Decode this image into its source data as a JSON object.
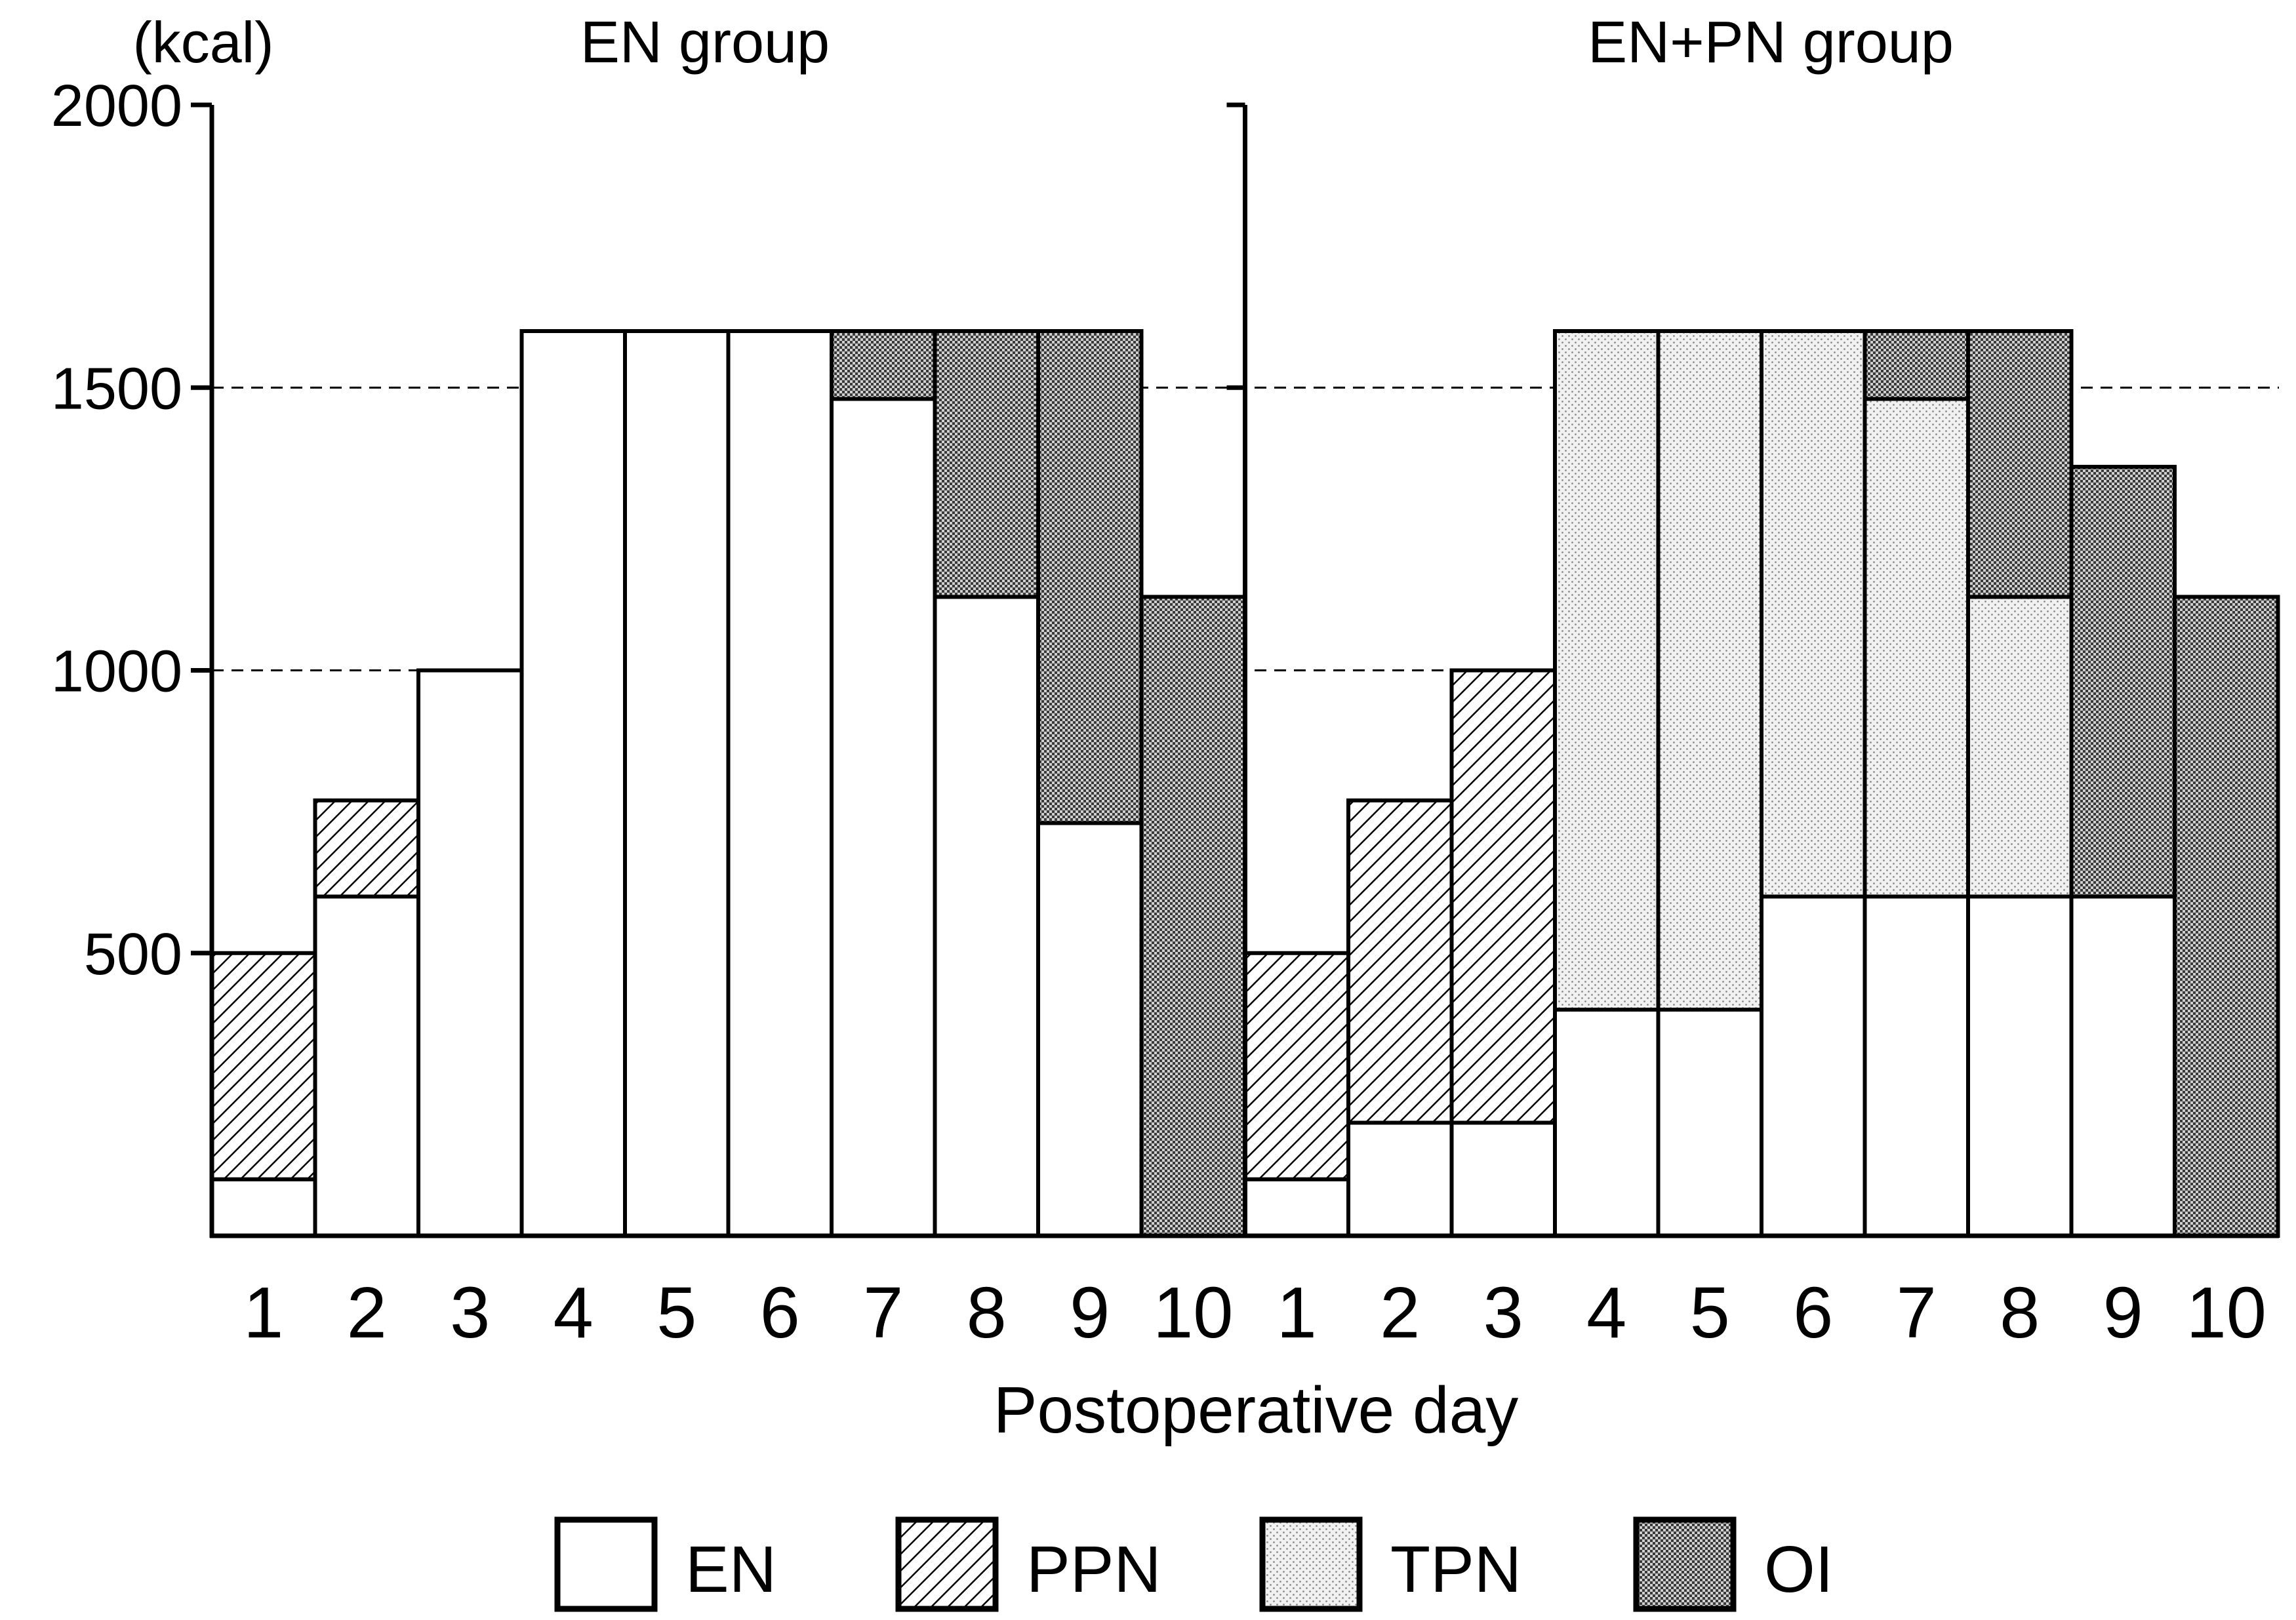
{
  "chart_data": {
    "type": "bar",
    "stacked": true,
    "ylabel": "(kcal)",
    "xlabel": "Postoperative day",
    "ylim": [
      0,
      2000
    ],
    "yticks": [
      500,
      1000,
      1500,
      2000
    ],
    "grid": "dashed horizontal at 500, 1000, 1500",
    "legend_position": "bottom",
    "series": [
      {
        "name": "EN",
        "pattern": "white"
      },
      {
        "name": "PPN",
        "pattern": "diagonal-hatch"
      },
      {
        "name": "TPN",
        "pattern": "light-dots"
      },
      {
        "name": "OI",
        "pattern": "dark-crosshatch"
      }
    ],
    "groups": [
      {
        "title": "EN group",
        "categories": [
          "1",
          "2",
          "3",
          "4",
          "5",
          "6",
          "7",
          "8",
          "9",
          "10"
        ],
        "EN": [
          100,
          600,
          1000,
          1600,
          1600,
          1600,
          1480,
          1130,
          730,
          0
        ],
        "PPN": [
          400,
          170,
          0,
          0,
          0,
          0,
          0,
          0,
          0,
          0
        ],
        "TPN": [
          0,
          0,
          0,
          0,
          0,
          0,
          0,
          0,
          0,
          0
        ],
        "OI": [
          0,
          0,
          0,
          0,
          0,
          0,
          120,
          470,
          870,
          1130
        ]
      },
      {
        "title": "EN+PN group",
        "categories": [
          "1",
          "2",
          "3",
          "4",
          "5",
          "6",
          "7",
          "8",
          "9",
          "10"
        ],
        "EN": [
          100,
          200,
          200,
          400,
          400,
          600,
          600,
          600,
          600,
          0
        ],
        "PPN": [
          400,
          570,
          800,
          0,
          0,
          0,
          0,
          0,
          0,
          0
        ],
        "TPN": [
          0,
          0,
          0,
          1200,
          1200,
          1000,
          880,
          530,
          0,
          0
        ],
        "OI": [
          0,
          0,
          0,
          0,
          0,
          0,
          120,
          470,
          760,
          1130
        ]
      }
    ]
  }
}
